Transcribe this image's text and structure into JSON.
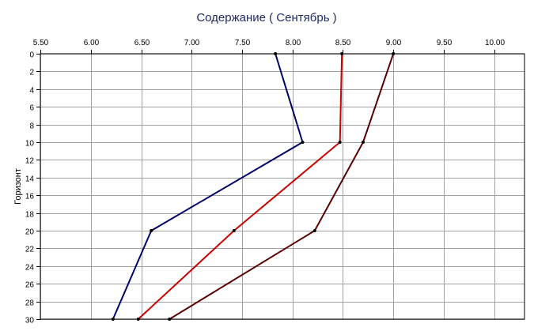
{
  "chart_data": {
    "type": "line",
    "title": "Содержание    ( Сентябрь )",
    "xlabel": "",
    "ylabel": "Горизонт",
    "xlim": [
      5.5,
      10.3
    ],
    "ylim": [
      0,
      30
    ],
    "y_inverted": true,
    "x_axis_position": "top",
    "grid": true,
    "x_ticks": [
      "5.50",
      "6.00",
      "6.50",
      "7.00",
      "7.50",
      "8.00",
      "8.50",
      "9.00",
      "9.50",
      "10.00"
    ],
    "y_ticks": [
      "0",
      "2",
      "4",
      "6",
      "8",
      "10",
      "12",
      "14",
      "16",
      "18",
      "20",
      "22",
      "24",
      "26",
      "28",
      "30"
    ],
    "series": [
      {
        "color": "#000066",
        "points": [
          [
            7.83,
            0
          ],
          [
            8.1,
            10
          ],
          [
            6.6,
            20
          ],
          [
            6.22,
            30
          ]
        ]
      },
      {
        "color": "#cc0000",
        "points": [
          [
            8.49,
            0
          ],
          [
            8.47,
            10
          ],
          [
            7.42,
            20
          ],
          [
            6.47,
            30
          ]
        ]
      },
      {
        "color": "#5a0000",
        "points": [
          [
            9.0,
            0
          ],
          [
            8.7,
            10
          ],
          [
            8.22,
            20
          ],
          [
            6.78,
            30
          ]
        ]
      }
    ]
  }
}
